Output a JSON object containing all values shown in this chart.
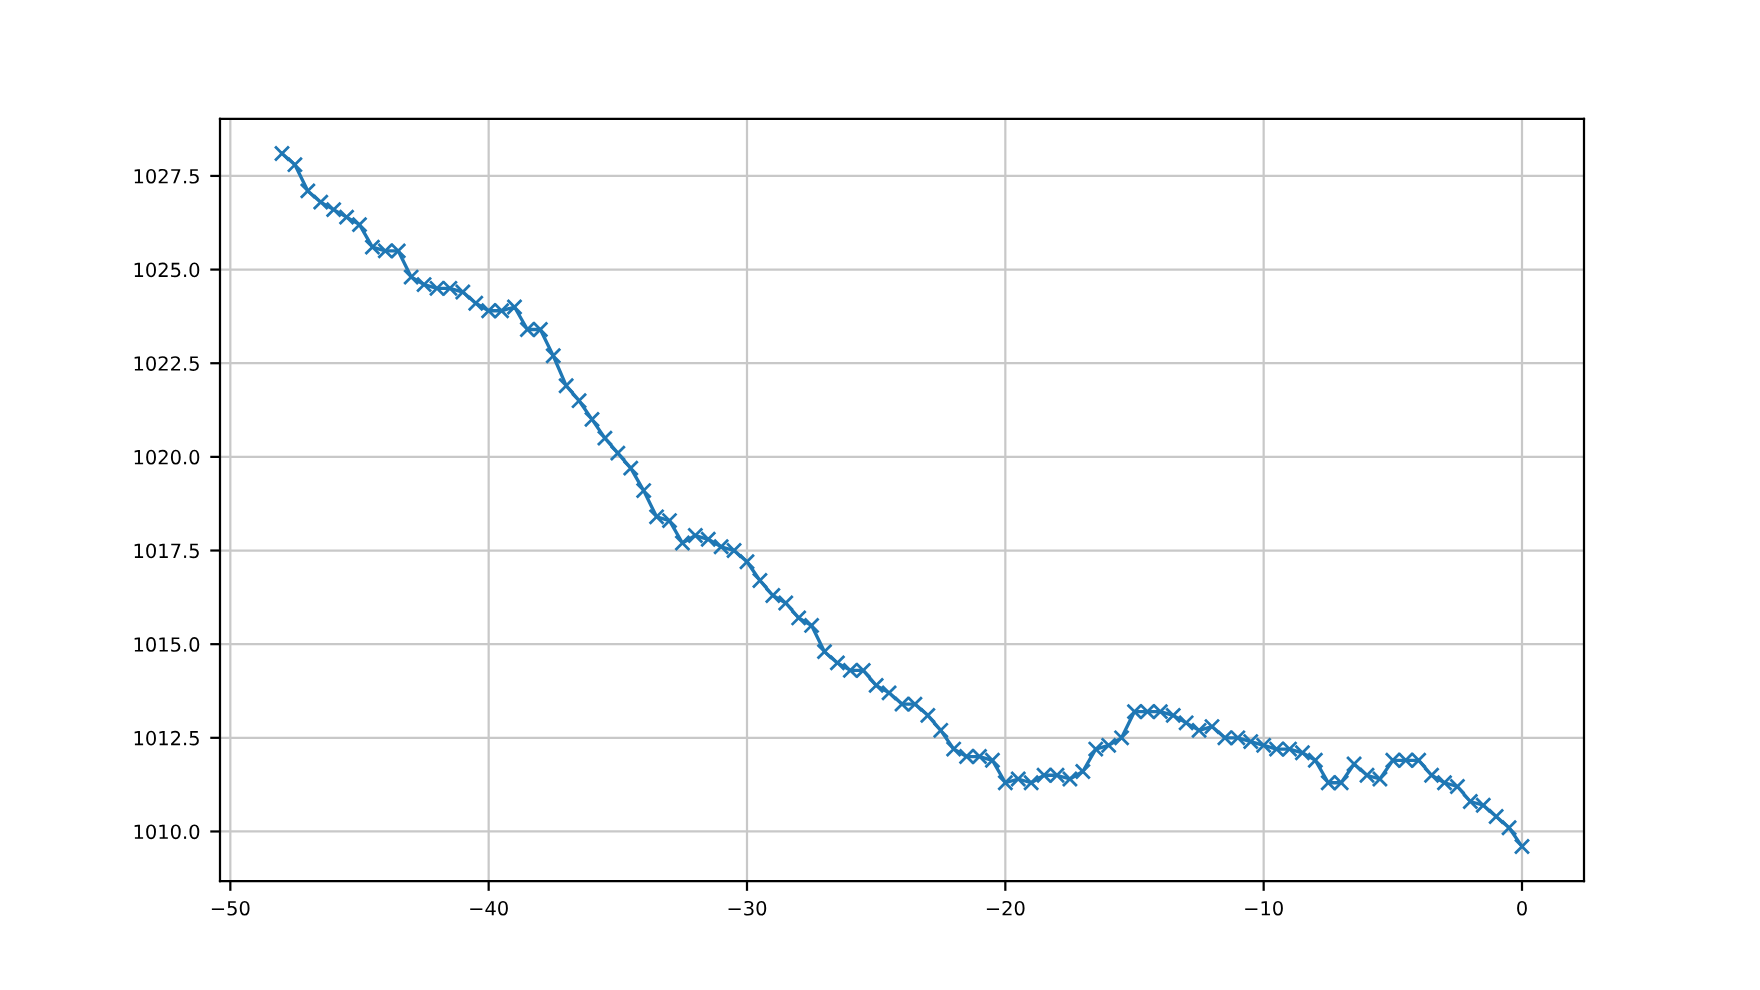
{
  "chart_data": {
    "type": "line",
    "marker": "cross",
    "grid": true,
    "line_style": "solid",
    "x": [
      -48,
      -47.5,
      -47,
      -46.5,
      -46,
      -45.5,
      -45,
      -44.5,
      -44,
      -43.5,
      -43,
      -42.5,
      -42,
      -41.5,
      -41,
      -40.5,
      -40,
      -39.5,
      -39,
      -38.5,
      -38,
      -37.5,
      -37,
      -36.5,
      -36,
      -35.5,
      -35,
      -34.5,
      -34,
      -33.5,
      -33,
      -32.5,
      -32,
      -31.5,
      -31,
      -30.5,
      -30,
      -29.5,
      -29,
      -28.5,
      -28,
      -27.5,
      -27,
      -26.5,
      -26,
      -25.5,
      -25,
      -24.5,
      -24,
      -23.5,
      -23,
      -22.5,
      -22,
      -21.5,
      -21,
      -20.5,
      -20,
      -19.5,
      -19,
      -18.5,
      -18,
      -17.5,
      -17,
      -16.5,
      -16,
      -15.5,
      -15,
      -14.5,
      -14,
      -13.5,
      -13,
      -12.5,
      -12,
      -11.5,
      -11,
      -10.5,
      -10,
      -9.5,
      -9,
      -8.5,
      -8,
      -7.5,
      -7,
      -6.5,
      -6,
      -5.5,
      -5,
      -4.5,
      -4,
      -3.5,
      -3,
      -2.5,
      -2,
      -1.5,
      -1,
      -0.5,
      0
    ],
    "series": [
      {
        "color": "#1f77b4",
        "values": [
          1028.1,
          1027.8,
          1027.1,
          1026.8,
          1026.6,
          1026.4,
          1026.2,
          1025.6,
          1025.5,
          1025.5,
          1024.8,
          1024.6,
          1024.5,
          1024.5,
          1024.4,
          1024.1,
          1023.9,
          1023.9,
          1024.0,
          1023.4,
          1023.4,
          1022.7,
          1021.9,
          1021.5,
          1021.0,
          1020.5,
          1020.1,
          1019.7,
          1019.1,
          1018.4,
          1018.3,
          1017.7,
          1017.9,
          1017.8,
          1017.6,
          1017.5,
          1017.2,
          1016.7,
          1016.3,
          1016.1,
          1015.7,
          1015.5,
          1014.8,
          1014.5,
          1014.3,
          1014.3,
          1013.9,
          1013.7,
          1013.4,
          1013.4,
          1013.1,
          1012.7,
          1012.2,
          1012.0,
          1012.0,
          1011.9,
          1011.3,
          1011.4,
          1011.3,
          1011.5,
          1011.5,
          1011.4,
          1011.6,
          1012.2,
          1012.3,
          1012.5,
          1013.2,
          1013.2,
          1013.2,
          1013.1,
          1012.9,
          1012.7,
          1012.8,
          1012.5,
          1012.5,
          1012.4,
          1012.3,
          1012.2,
          1012.2,
          1012.1,
          1011.9,
          1011.3,
          1011.3,
          1011.8,
          1011.5,
          1011.4,
          1011.9,
          1011.9,
          1011.9,
          1011.5,
          1011.3,
          1011.2,
          1010.8,
          1010.7,
          1010.4,
          1010.1,
          1009.6
        ]
      }
    ],
    "xlim": [
      -50.4,
      2.4
    ],
    "xticks": [
      -50,
      -40,
      -30,
      -20,
      -10,
      0
    ],
    "ylim": [
      1008.675,
      1029.025
    ],
    "yticks": [
      {
        "value": 1010,
        "label": "1010.0"
      },
      1012.5,
      {
        "value": 1015,
        "label": "1015.0"
      },
      1017.5,
      {
        "value": 1020,
        "label": "1020.0"
      },
      1022.5,
      {
        "value": 1025,
        "label": "1025.0"
      },
      1027.5
    ]
  }
}
